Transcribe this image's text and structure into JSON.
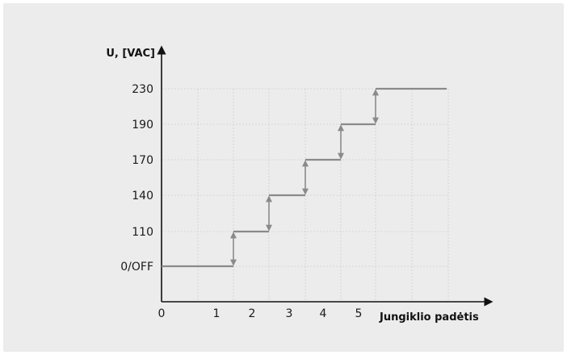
{
  "chart_data": {
    "type": "line",
    "subtype": "step",
    "title": "",
    "xlabel": "Jungiklio padėtis",
    "ylabel": "U, [VAC]",
    "x_tick_labels": [
      "0",
      "1",
      "2",
      "3",
      "4",
      "5"
    ],
    "y_tick_labels": [
      "0/OFF",
      "110",
      "140",
      "170",
      "190",
      "230"
    ],
    "grid": true,
    "series": [
      {
        "x": [
          0,
          1,
          2,
          3,
          4,
          5
        ],
        "y": [
          "0/OFF",
          "110",
          "140",
          "170",
          "190",
          "230"
        ]
      }
    ],
    "colors": {
      "background": "#ececed",
      "series": "#8a8a8a",
      "axis": "#111111",
      "grid": "#cfcfcf"
    }
  }
}
